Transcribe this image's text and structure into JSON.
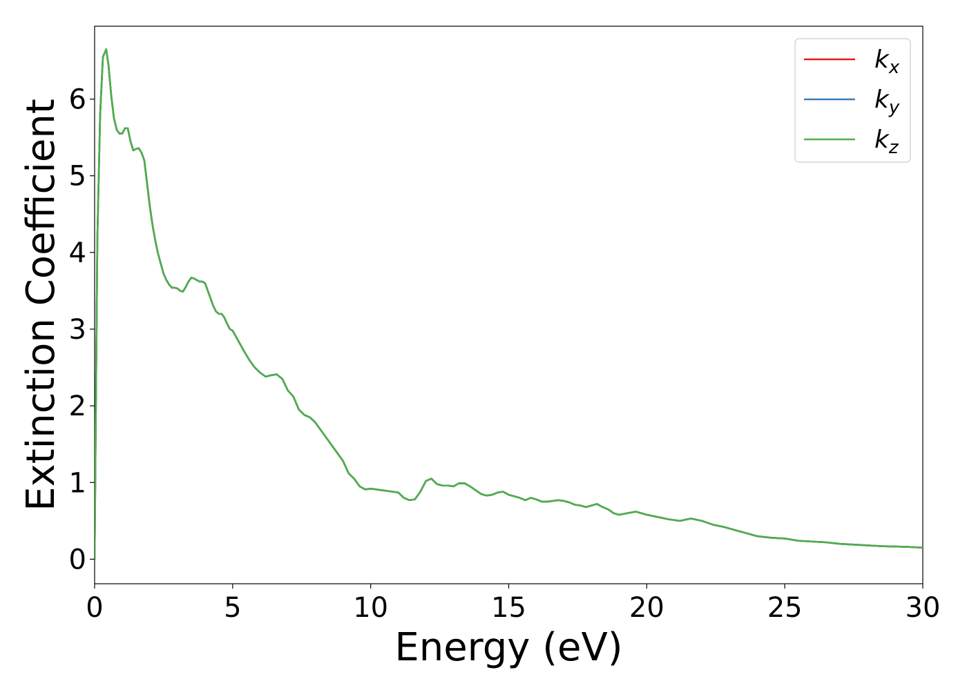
{
  "chart_data": {
    "type": "line",
    "title": "",
    "xlabel": "Energy (eV)",
    "ylabel": "Extinction Coefficient",
    "xlim": [
      0,
      30
    ],
    "ylim": [
      -0.32,
      6.95
    ],
    "xticks": [
      0,
      5,
      10,
      15,
      20,
      25,
      30
    ],
    "yticks": [
      0,
      1,
      2,
      3,
      4,
      5,
      6
    ],
    "grid": false,
    "legend_position": "top-right",
    "series": [
      {
        "name": "k",
        "subscript": "x",
        "color": "#e41a1c",
        "x": [
          0,
          0.05,
          0.1,
          0.2,
          0.3,
          0.42,
          0.5,
          0.6,
          0.7,
          0.8,
          0.9,
          1.0,
          1.1,
          1.2,
          1.3,
          1.4,
          1.5,
          1.6,
          1.7,
          1.8,
          1.9,
          2.0,
          2.1,
          2.2,
          2.3,
          2.4,
          2.5,
          2.6,
          2.7,
          2.8,
          2.9,
          3.0,
          3.1,
          3.2,
          3.3,
          3.4,
          3.5,
          3.6,
          3.7,
          3.8,
          3.9,
          4.0,
          4.1,
          4.2,
          4.3,
          4.4,
          4.5,
          4.6,
          4.7,
          4.8,
          4.9,
          5.0,
          5.2,
          5.4,
          5.6,
          5.8,
          6.0,
          6.2,
          6.4,
          6.6,
          6.8,
          7.0,
          7.2,
          7.4,
          7.6,
          7.8,
          8.0,
          8.2,
          8.4,
          8.6,
          8.8,
          9.0,
          9.2,
          9.4,
          9.6,
          9.8,
          10.0,
          10.2,
          10.4,
          10.6,
          10.8,
          11.0,
          11.2,
          11.4,
          11.6,
          11.8,
          12.0,
          12.2,
          12.4,
          12.6,
          12.8,
          13.0,
          13.2,
          13.4,
          13.6,
          13.8,
          14.0,
          14.2,
          14.4,
          14.6,
          14.8,
          15.0,
          15.2,
          15.4,
          15.6,
          15.8,
          16.0,
          16.2,
          16.4,
          16.6,
          16.8,
          17.0,
          17.2,
          17.4,
          17.6,
          17.8,
          18.0,
          18.2,
          18.4,
          18.6,
          18.8,
          19.0,
          19.3,
          19.6,
          20.0,
          20.4,
          20.8,
          21.2,
          21.6,
          22.0,
          22.4,
          22.8,
          23.2,
          23.6,
          24.0,
          24.5,
          25.0,
          25.5,
          26.0,
          26.5,
          27.0,
          27.5,
          28.0,
          28.5,
          29.0,
          29.5,
          30.0
        ],
        "y": [
          0.0,
          2.2,
          4.2,
          5.8,
          6.55,
          6.65,
          6.45,
          6.05,
          5.75,
          5.6,
          5.55,
          5.55,
          5.62,
          5.62,
          5.45,
          5.33,
          5.35,
          5.36,
          5.3,
          5.2,
          4.9,
          4.6,
          4.35,
          4.15,
          3.98,
          3.85,
          3.72,
          3.64,
          3.58,
          3.54,
          3.54,
          3.53,
          3.5,
          3.49,
          3.55,
          3.62,
          3.67,
          3.66,
          3.64,
          3.62,
          3.62,
          3.6,
          3.5,
          3.4,
          3.3,
          3.23,
          3.2,
          3.2,
          3.15,
          3.07,
          3.0,
          2.98,
          2.85,
          2.72,
          2.6,
          2.5,
          2.43,
          2.38,
          2.4,
          2.41,
          2.35,
          2.2,
          2.12,
          1.95,
          1.88,
          1.85,
          1.78,
          1.68,
          1.58,
          1.48,
          1.38,
          1.28,
          1.12,
          1.05,
          0.95,
          0.91,
          0.92,
          0.91,
          0.9,
          0.89,
          0.88,
          0.87,
          0.8,
          0.77,
          0.78,
          0.88,
          1.02,
          1.05,
          0.98,
          0.96,
          0.96,
          0.95,
          0.99,
          0.99,
          0.95,
          0.9,
          0.85,
          0.83,
          0.84,
          0.87,
          0.88,
          0.84,
          0.82,
          0.8,
          0.77,
          0.8,
          0.78,
          0.75,
          0.75,
          0.76,
          0.77,
          0.76,
          0.74,
          0.71,
          0.7,
          0.68,
          0.7,
          0.72,
          0.68,
          0.65,
          0.6,
          0.58,
          0.6,
          0.62,
          0.58,
          0.55,
          0.52,
          0.5,
          0.53,
          0.5,
          0.45,
          0.42,
          0.38,
          0.34,
          0.3,
          0.28,
          0.27,
          0.24,
          0.23,
          0.22,
          0.2,
          0.19,
          0.18,
          0.17,
          0.165,
          0.16,
          0.15
        ]
      },
      {
        "name": "k",
        "subscript": "y",
        "color": "#377eb8",
        "x": [
          0,
          0.05,
          0.1,
          0.2,
          0.3,
          0.42,
          0.5,
          0.6,
          0.7,
          0.8,
          0.9,
          1.0,
          1.1,
          1.2,
          1.3,
          1.4,
          1.5,
          1.6,
          1.7,
          1.8,
          1.9,
          2.0,
          2.1,
          2.2,
          2.3,
          2.4,
          2.5,
          2.6,
          2.7,
          2.8,
          2.9,
          3.0,
          3.1,
          3.2,
          3.3,
          3.4,
          3.5,
          3.6,
          3.7,
          3.8,
          3.9,
          4.0,
          4.1,
          4.2,
          4.3,
          4.4,
          4.5,
          4.6,
          4.7,
          4.8,
          4.9,
          5.0,
          5.2,
          5.4,
          5.6,
          5.8,
          6.0,
          6.2,
          6.4,
          6.6,
          6.8,
          7.0,
          7.2,
          7.4,
          7.6,
          7.8,
          8.0,
          8.2,
          8.4,
          8.6,
          8.8,
          9.0,
          9.2,
          9.4,
          9.6,
          9.8,
          10.0,
          10.2,
          10.4,
          10.6,
          10.8,
          11.0,
          11.2,
          11.4,
          11.6,
          11.8,
          12.0,
          12.2,
          12.4,
          12.6,
          12.8,
          13.0,
          13.2,
          13.4,
          13.6,
          13.8,
          14.0,
          14.2,
          14.4,
          14.6,
          14.8,
          15.0,
          15.2,
          15.4,
          15.6,
          15.8,
          16.0,
          16.2,
          16.4,
          16.6,
          16.8,
          17.0,
          17.2,
          17.4,
          17.6,
          17.8,
          18.0,
          18.2,
          18.4,
          18.6,
          18.8,
          19.0,
          19.3,
          19.6,
          20.0,
          20.4,
          20.8,
          21.2,
          21.6,
          22.0,
          22.4,
          22.8,
          23.2,
          23.6,
          24.0,
          24.5,
          25.0,
          25.5,
          26.0,
          26.5,
          27.0,
          27.5,
          28.0,
          28.5,
          29.0,
          29.5,
          30.0
        ],
        "y": [
          0.0,
          2.2,
          4.2,
          5.8,
          6.55,
          6.65,
          6.45,
          6.05,
          5.75,
          5.6,
          5.55,
          5.55,
          5.62,
          5.62,
          5.45,
          5.33,
          5.35,
          5.36,
          5.3,
          5.2,
          4.9,
          4.6,
          4.35,
          4.15,
          3.98,
          3.85,
          3.72,
          3.64,
          3.58,
          3.54,
          3.54,
          3.53,
          3.5,
          3.49,
          3.55,
          3.62,
          3.67,
          3.66,
          3.64,
          3.62,
          3.62,
          3.6,
          3.5,
          3.4,
          3.3,
          3.23,
          3.2,
          3.2,
          3.15,
          3.07,
          3.0,
          2.98,
          2.85,
          2.72,
          2.6,
          2.5,
          2.43,
          2.38,
          2.4,
          2.41,
          2.35,
          2.2,
          2.12,
          1.95,
          1.88,
          1.85,
          1.78,
          1.68,
          1.58,
          1.48,
          1.38,
          1.28,
          1.12,
          1.05,
          0.95,
          0.91,
          0.92,
          0.91,
          0.9,
          0.89,
          0.88,
          0.87,
          0.8,
          0.77,
          0.78,
          0.88,
          1.02,
          1.05,
          0.98,
          0.96,
          0.96,
          0.95,
          0.99,
          0.99,
          0.95,
          0.9,
          0.85,
          0.83,
          0.84,
          0.87,
          0.88,
          0.84,
          0.82,
          0.8,
          0.77,
          0.8,
          0.78,
          0.75,
          0.75,
          0.76,
          0.77,
          0.76,
          0.74,
          0.71,
          0.7,
          0.68,
          0.7,
          0.72,
          0.68,
          0.65,
          0.6,
          0.58,
          0.6,
          0.62,
          0.58,
          0.55,
          0.52,
          0.5,
          0.53,
          0.5,
          0.45,
          0.42,
          0.38,
          0.34,
          0.3,
          0.28,
          0.27,
          0.24,
          0.23,
          0.22,
          0.2,
          0.19,
          0.18,
          0.17,
          0.165,
          0.16,
          0.15
        ]
      },
      {
        "name": "k",
        "subscript": "z",
        "color": "#4daf4a",
        "x": [
          0,
          0.05,
          0.1,
          0.2,
          0.3,
          0.42,
          0.5,
          0.6,
          0.7,
          0.8,
          0.9,
          1.0,
          1.1,
          1.2,
          1.3,
          1.4,
          1.5,
          1.6,
          1.7,
          1.8,
          1.9,
          2.0,
          2.1,
          2.2,
          2.3,
          2.4,
          2.5,
          2.6,
          2.7,
          2.8,
          2.9,
          3.0,
          3.1,
          3.2,
          3.3,
          3.4,
          3.5,
          3.6,
          3.7,
          3.8,
          3.9,
          4.0,
          4.1,
          4.2,
          4.3,
          4.4,
          4.5,
          4.6,
          4.7,
          4.8,
          4.9,
          5.0,
          5.2,
          5.4,
          5.6,
          5.8,
          6.0,
          6.2,
          6.4,
          6.6,
          6.8,
          7.0,
          7.2,
          7.4,
          7.6,
          7.8,
          8.0,
          8.2,
          8.4,
          8.6,
          8.8,
          9.0,
          9.2,
          9.4,
          9.6,
          9.8,
          10.0,
          10.2,
          10.4,
          10.6,
          10.8,
          11.0,
          11.2,
          11.4,
          11.6,
          11.8,
          12.0,
          12.2,
          12.4,
          12.6,
          12.8,
          13.0,
          13.2,
          13.4,
          13.6,
          13.8,
          14.0,
          14.2,
          14.4,
          14.6,
          14.8,
          15.0,
          15.2,
          15.4,
          15.6,
          15.8,
          16.0,
          16.2,
          16.4,
          16.6,
          16.8,
          17.0,
          17.2,
          17.4,
          17.6,
          17.8,
          18.0,
          18.2,
          18.4,
          18.6,
          18.8,
          19.0,
          19.3,
          19.6,
          20.0,
          20.4,
          20.8,
          21.2,
          21.6,
          22.0,
          22.4,
          22.8,
          23.2,
          23.6,
          24.0,
          24.5,
          25.0,
          25.5,
          26.0,
          26.5,
          27.0,
          27.5,
          28.0,
          28.5,
          29.0,
          29.5,
          30.0
        ],
        "y": [
          0.0,
          2.2,
          4.2,
          5.8,
          6.55,
          6.65,
          6.45,
          6.05,
          5.75,
          5.6,
          5.55,
          5.55,
          5.62,
          5.62,
          5.45,
          5.33,
          5.35,
          5.36,
          5.3,
          5.2,
          4.9,
          4.6,
          4.35,
          4.15,
          3.98,
          3.85,
          3.72,
          3.64,
          3.58,
          3.54,
          3.54,
          3.53,
          3.5,
          3.49,
          3.55,
          3.62,
          3.67,
          3.66,
          3.64,
          3.62,
          3.62,
          3.6,
          3.5,
          3.4,
          3.3,
          3.23,
          3.2,
          3.2,
          3.15,
          3.07,
          3.0,
          2.98,
          2.85,
          2.72,
          2.6,
          2.5,
          2.43,
          2.38,
          2.4,
          2.41,
          2.35,
          2.2,
          2.12,
          1.95,
          1.88,
          1.85,
          1.78,
          1.68,
          1.58,
          1.48,
          1.38,
          1.28,
          1.12,
          1.05,
          0.95,
          0.91,
          0.92,
          0.91,
          0.9,
          0.89,
          0.88,
          0.87,
          0.8,
          0.77,
          0.78,
          0.88,
          1.02,
          1.05,
          0.98,
          0.96,
          0.96,
          0.95,
          0.99,
          0.99,
          0.95,
          0.9,
          0.85,
          0.83,
          0.84,
          0.87,
          0.88,
          0.84,
          0.82,
          0.8,
          0.77,
          0.8,
          0.78,
          0.75,
          0.75,
          0.76,
          0.77,
          0.76,
          0.74,
          0.71,
          0.7,
          0.68,
          0.7,
          0.72,
          0.68,
          0.65,
          0.6,
          0.58,
          0.6,
          0.62,
          0.58,
          0.55,
          0.52,
          0.5,
          0.53,
          0.5,
          0.45,
          0.42,
          0.38,
          0.34,
          0.3,
          0.28,
          0.27,
          0.24,
          0.23,
          0.22,
          0.2,
          0.19,
          0.18,
          0.17,
          0.165,
          0.16,
          0.15
        ]
      }
    ]
  }
}
